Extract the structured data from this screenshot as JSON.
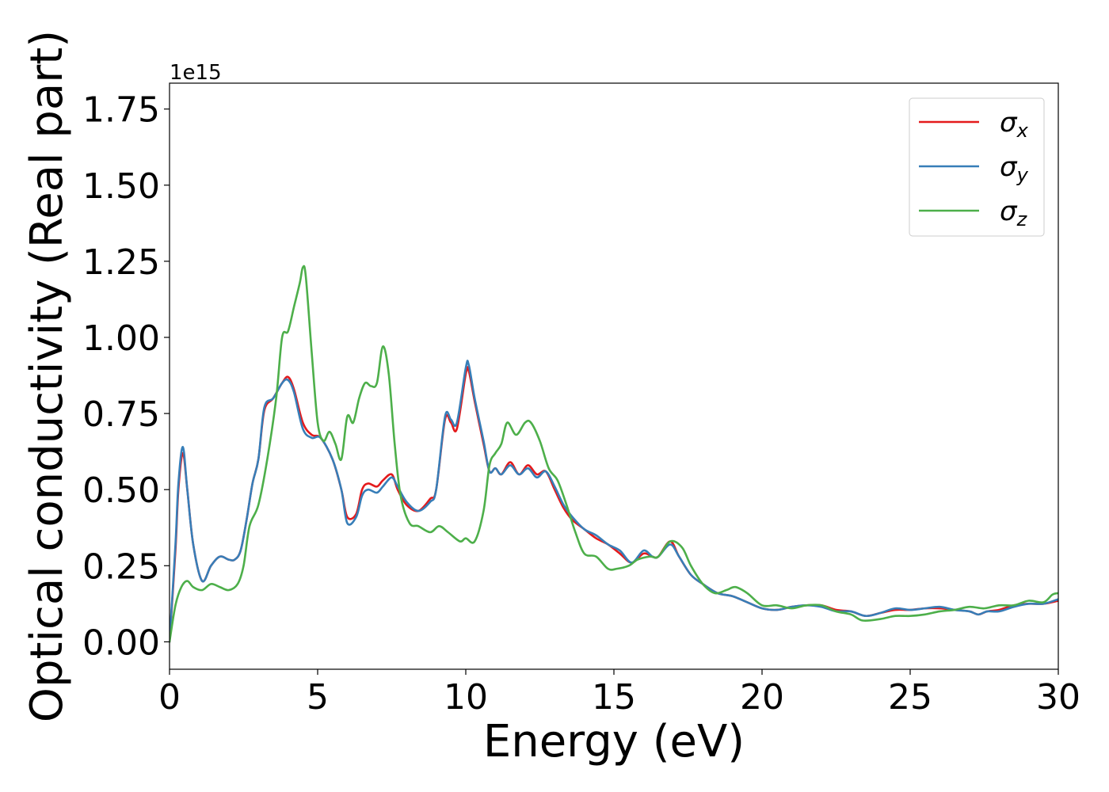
{
  "chart_data": {
    "type": "line",
    "title": "",
    "xlabel": "Energy (eV)",
    "ylabel": "Optical conductivity (Real part)",
    "y_offset_text": "1e15",
    "xlim": [
      0,
      30
    ],
    "ylim": [
      -0.09,
      1.835
    ],
    "x_ticks": [
      0,
      5,
      10,
      15,
      20,
      25,
      30
    ],
    "y_ticks": [
      0.0,
      0.25,
      0.5,
      0.75,
      1.0,
      1.25,
      1.5,
      1.75
    ],
    "x_tick_labels": [
      "0",
      "5",
      "10",
      "15",
      "20",
      "25",
      "30"
    ],
    "y_tick_labels": [
      "0.00",
      "0.25",
      "0.50",
      "0.75",
      "1.00",
      "1.25",
      "1.50",
      "1.75"
    ],
    "grid": false,
    "legend_position": "top-right",
    "series": [
      {
        "name": "σx",
        "legend_base": "σ",
        "legend_sub": "x",
        "color": "#e41a1c",
        "points": [
          [
            0,
            0
          ],
          [
            0.2,
            0.3
          ],
          [
            0.3,
            0.5
          ],
          [
            0.45,
            0.62
          ],
          [
            0.6,
            0.5
          ],
          [
            0.8,
            0.32
          ],
          [
            1.1,
            0.2
          ],
          [
            1.4,
            0.25
          ],
          [
            1.7,
            0.28
          ],
          [
            2.0,
            0.27
          ],
          [
            2.2,
            0.27
          ],
          [
            2.4,
            0.3
          ],
          [
            2.6,
            0.4
          ],
          [
            2.8,
            0.52
          ],
          [
            3.0,
            0.6
          ],
          [
            3.2,
            0.76
          ],
          [
            3.5,
            0.8
          ],
          [
            3.8,
            0.85
          ],
          [
            4.0,
            0.87
          ],
          [
            4.2,
            0.83
          ],
          [
            4.5,
            0.72
          ],
          [
            4.8,
            0.68
          ],
          [
            5.1,
            0.67
          ],
          [
            5.5,
            0.6
          ],
          [
            5.8,
            0.5
          ],
          [
            6.0,
            0.41
          ],
          [
            6.3,
            0.42
          ],
          [
            6.5,
            0.5
          ],
          [
            6.7,
            0.52
          ],
          [
            7.0,
            0.51
          ],
          [
            7.2,
            0.53
          ],
          [
            7.5,
            0.55
          ],
          [
            7.7,
            0.5
          ],
          [
            8.0,
            0.45
          ],
          [
            8.4,
            0.43
          ],
          [
            8.8,
            0.47
          ],
          [
            9.0,
            0.5
          ],
          [
            9.3,
            0.73
          ],
          [
            9.5,
            0.72
          ],
          [
            9.7,
            0.7
          ],
          [
            10.0,
            0.88
          ],
          [
            10.1,
            0.89
          ],
          [
            10.3,
            0.79
          ],
          [
            10.6,
            0.65
          ],
          [
            10.8,
            0.56
          ],
          [
            11.0,
            0.57
          ],
          [
            11.2,
            0.55
          ],
          [
            11.5,
            0.59
          ],
          [
            11.8,
            0.55
          ],
          [
            12.1,
            0.58
          ],
          [
            12.4,
            0.55
          ],
          [
            12.7,
            0.56
          ],
          [
            13.0,
            0.5
          ],
          [
            13.3,
            0.44
          ],
          [
            13.6,
            0.4
          ],
          [
            14.0,
            0.37
          ],
          [
            14.4,
            0.34
          ],
          [
            14.8,
            0.32
          ],
          [
            15.2,
            0.29
          ],
          [
            15.6,
            0.26
          ],
          [
            16.0,
            0.29
          ],
          [
            16.3,
            0.28
          ],
          [
            16.5,
            0.28
          ],
          [
            16.9,
            0.33
          ],
          [
            17.2,
            0.28
          ],
          [
            17.6,
            0.22
          ],
          [
            18.0,
            0.19
          ],
          [
            18.5,
            0.16
          ],
          [
            19.0,
            0.15
          ],
          [
            19.5,
            0.13
          ],
          [
            20.0,
            0.11
          ],
          [
            20.5,
            0.105
          ],
          [
            21.0,
            0.115
          ],
          [
            21.5,
            0.12
          ],
          [
            22.0,
            0.12
          ],
          [
            22.5,
            0.105
          ],
          [
            23.0,
            0.1
          ],
          [
            23.5,
            0.085
          ],
          [
            24.0,
            0.095
          ],
          [
            24.5,
            0.105
          ],
          [
            25.0,
            0.105
          ],
          [
            25.5,
            0.11
          ],
          [
            26.0,
            0.11
          ],
          [
            26.5,
            0.105
          ],
          [
            27.0,
            0.1
          ],
          [
            27.3,
            0.09
          ],
          [
            27.6,
            0.1
          ],
          [
            28.0,
            0.105
          ],
          [
            28.5,
            0.12
          ],
          [
            29.0,
            0.125
          ],
          [
            29.5,
            0.125
          ],
          [
            30.0,
            0.135
          ]
        ]
      },
      {
        "name": "σy",
        "legend_base": "σ",
        "legend_sub": "y",
        "color": "#377eb8",
        "points": [
          [
            0,
            0
          ],
          [
            0.2,
            0.32
          ],
          [
            0.3,
            0.52
          ],
          [
            0.45,
            0.64
          ],
          [
            0.6,
            0.5
          ],
          [
            0.8,
            0.32
          ],
          [
            1.1,
            0.2
          ],
          [
            1.4,
            0.25
          ],
          [
            1.7,
            0.28
          ],
          [
            2.0,
            0.27
          ],
          [
            2.2,
            0.27
          ],
          [
            2.4,
            0.3
          ],
          [
            2.6,
            0.4
          ],
          [
            2.8,
            0.52
          ],
          [
            3.0,
            0.6
          ],
          [
            3.2,
            0.77
          ],
          [
            3.5,
            0.8
          ],
          [
            3.8,
            0.85
          ],
          [
            4.0,
            0.86
          ],
          [
            4.2,
            0.82
          ],
          [
            4.5,
            0.7
          ],
          [
            4.8,
            0.67
          ],
          [
            5.1,
            0.67
          ],
          [
            5.5,
            0.6
          ],
          [
            5.8,
            0.5
          ],
          [
            6.0,
            0.39
          ],
          [
            6.3,
            0.41
          ],
          [
            6.5,
            0.48
          ],
          [
            6.7,
            0.5
          ],
          [
            7.0,
            0.49
          ],
          [
            7.2,
            0.51
          ],
          [
            7.5,
            0.54
          ],
          [
            7.7,
            0.51
          ],
          [
            8.0,
            0.46
          ],
          [
            8.4,
            0.43
          ],
          [
            8.8,
            0.46
          ],
          [
            9.0,
            0.5
          ],
          [
            9.3,
            0.74
          ],
          [
            9.5,
            0.73
          ],
          [
            9.7,
            0.72
          ],
          [
            10.0,
            0.9
          ],
          [
            10.1,
            0.91
          ],
          [
            10.3,
            0.8
          ],
          [
            10.6,
            0.66
          ],
          [
            10.8,
            0.56
          ],
          [
            11.0,
            0.57
          ],
          [
            11.2,
            0.55
          ],
          [
            11.5,
            0.58
          ],
          [
            11.8,
            0.55
          ],
          [
            12.1,
            0.57
          ],
          [
            12.4,
            0.54
          ],
          [
            12.7,
            0.56
          ],
          [
            13.0,
            0.51
          ],
          [
            13.3,
            0.45
          ],
          [
            13.6,
            0.41
          ],
          [
            14.0,
            0.37
          ],
          [
            14.4,
            0.35
          ],
          [
            14.8,
            0.32
          ],
          [
            15.2,
            0.3
          ],
          [
            15.6,
            0.26
          ],
          [
            16.0,
            0.3
          ],
          [
            16.3,
            0.28
          ],
          [
            16.5,
            0.28
          ],
          [
            16.9,
            0.32
          ],
          [
            17.2,
            0.28
          ],
          [
            17.6,
            0.22
          ],
          [
            18.0,
            0.19
          ],
          [
            18.5,
            0.16
          ],
          [
            19.0,
            0.15
          ],
          [
            19.5,
            0.13
          ],
          [
            20.0,
            0.11
          ],
          [
            20.5,
            0.105
          ],
          [
            21.0,
            0.115
          ],
          [
            21.5,
            0.12
          ],
          [
            22.0,
            0.115
          ],
          [
            22.5,
            0.1
          ],
          [
            23.0,
            0.1
          ],
          [
            23.5,
            0.085
          ],
          [
            24.0,
            0.095
          ],
          [
            24.5,
            0.11
          ],
          [
            25.0,
            0.105
          ],
          [
            25.5,
            0.11
          ],
          [
            26.0,
            0.115
          ],
          [
            26.5,
            0.105
          ],
          [
            27.0,
            0.1
          ],
          [
            27.3,
            0.09
          ],
          [
            27.6,
            0.1
          ],
          [
            28.0,
            0.1
          ],
          [
            28.5,
            0.115
          ],
          [
            29.0,
            0.125
          ],
          [
            29.5,
            0.125
          ],
          [
            30.0,
            0.14
          ]
        ]
      },
      {
        "name": "σz",
        "legend_base": "σ",
        "legend_sub": "z",
        "color": "#4daf4a",
        "points": [
          [
            0,
            0
          ],
          [
            0.2,
            0.12
          ],
          [
            0.4,
            0.18
          ],
          [
            0.6,
            0.2
          ],
          [
            0.8,
            0.18
          ],
          [
            1.1,
            0.17
          ],
          [
            1.4,
            0.19
          ],
          [
            1.7,
            0.18
          ],
          [
            2.0,
            0.17
          ],
          [
            2.3,
            0.19
          ],
          [
            2.5,
            0.25
          ],
          [
            2.7,
            0.38
          ],
          [
            3.0,
            0.45
          ],
          [
            3.3,
            0.6
          ],
          [
            3.6,
            0.8
          ],
          [
            3.8,
            1.0
          ],
          [
            4.0,
            1.02
          ],
          [
            4.2,
            1.1
          ],
          [
            4.4,
            1.18
          ],
          [
            4.5,
            1.23
          ],
          [
            4.6,
            1.2
          ],
          [
            4.8,
            0.95
          ],
          [
            5.0,
            0.72
          ],
          [
            5.2,
            0.66
          ],
          [
            5.4,
            0.69
          ],
          [
            5.6,
            0.65
          ],
          [
            5.8,
            0.6
          ],
          [
            6.0,
            0.74
          ],
          [
            6.2,
            0.72
          ],
          [
            6.4,
            0.8
          ],
          [
            6.6,
            0.85
          ],
          [
            6.8,
            0.84
          ],
          [
            7.0,
            0.85
          ],
          [
            7.2,
            0.97
          ],
          [
            7.4,
            0.88
          ],
          [
            7.6,
            0.65
          ],
          [
            7.8,
            0.48
          ],
          [
            8.1,
            0.39
          ],
          [
            8.4,
            0.38
          ],
          [
            8.8,
            0.36
          ],
          [
            9.1,
            0.38
          ],
          [
            9.4,
            0.36
          ],
          [
            9.8,
            0.33
          ],
          [
            10.0,
            0.34
          ],
          [
            10.3,
            0.33
          ],
          [
            10.6,
            0.43
          ],
          [
            10.8,
            0.58
          ],
          [
            11.0,
            0.62
          ],
          [
            11.2,
            0.65
          ],
          [
            11.4,
            0.72
          ],
          [
            11.7,
            0.68
          ],
          [
            12.0,
            0.72
          ],
          [
            12.2,
            0.72
          ],
          [
            12.5,
            0.66
          ],
          [
            12.8,
            0.57
          ],
          [
            13.1,
            0.53
          ],
          [
            13.4,
            0.45
          ],
          [
            13.7,
            0.36
          ],
          [
            14.0,
            0.29
          ],
          [
            14.4,
            0.28
          ],
          [
            14.8,
            0.24
          ],
          [
            15.1,
            0.24
          ],
          [
            15.5,
            0.25
          ],
          [
            15.8,
            0.27
          ],
          [
            16.2,
            0.28
          ],
          [
            16.5,
            0.28
          ],
          [
            16.9,
            0.33
          ],
          [
            17.3,
            0.31
          ],
          [
            17.6,
            0.25
          ],
          [
            18.0,
            0.19
          ],
          [
            18.4,
            0.16
          ],
          [
            18.8,
            0.17
          ],
          [
            19.1,
            0.18
          ],
          [
            19.5,
            0.16
          ],
          [
            20.0,
            0.12
          ],
          [
            20.5,
            0.12
          ],
          [
            21.0,
            0.11
          ],
          [
            21.5,
            0.12
          ],
          [
            22.0,
            0.12
          ],
          [
            22.5,
            0.1
          ],
          [
            23.0,
            0.09
          ],
          [
            23.4,
            0.07
          ],
          [
            24.0,
            0.075
          ],
          [
            24.5,
            0.085
          ],
          [
            25.0,
            0.085
          ],
          [
            25.5,
            0.09
          ],
          [
            26.0,
            0.1
          ],
          [
            26.5,
            0.105
          ],
          [
            27.0,
            0.115
          ],
          [
            27.5,
            0.11
          ],
          [
            28.0,
            0.12
          ],
          [
            28.5,
            0.12
          ],
          [
            29.0,
            0.135
          ],
          [
            29.5,
            0.13
          ],
          [
            29.8,
            0.155
          ],
          [
            30.0,
            0.16
          ]
        ]
      }
    ]
  }
}
